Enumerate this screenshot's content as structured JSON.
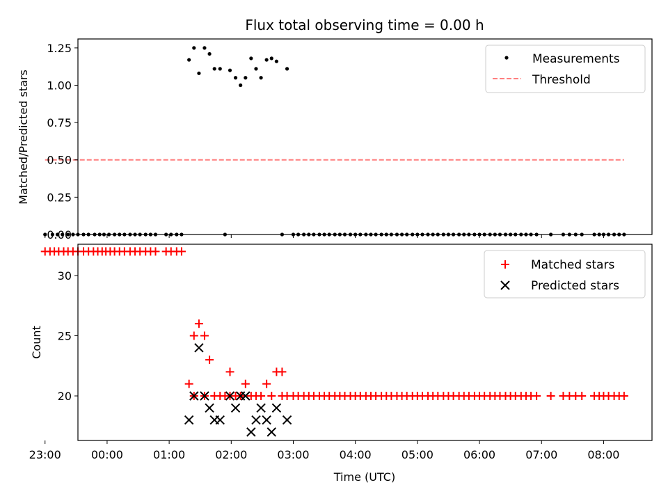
{
  "chart_data": {
    "type": "scatter",
    "title": "Flux total observing time = 0.00 h",
    "shared_xaxis": {
      "label": "Time (UTC)",
      "unit": "hours after 00:00 UTC",
      "lim": [
        -0.47,
        8.78
      ],
      "ticks": [
        -1,
        0,
        1,
        2,
        3,
        4,
        5,
        6,
        7,
        8
      ],
      "tick_labels": [
        "23:00",
        "00:00",
        "01:00",
        "02:00",
        "03:00",
        "04:00",
        "05:00",
        "06:00",
        "07:00",
        "08:00"
      ]
    },
    "panels": [
      {
        "id": "ratio",
        "ylabel": "Matched/Predicted stars",
        "ylim": [
          0,
          1.31
        ],
        "yticks": [
          0.0,
          0.25,
          0.5,
          0.75,
          1.0,
          1.25
        ],
        "ytick_labels": [
          "0.00",
          "0.25",
          "0.50",
          "0.75",
          "1.00",
          "1.25"
        ],
        "legend_position": "upper right",
        "legend": [
          "Measurements",
          "Threshold"
        ],
        "series": [
          {
            "name": "Measurements",
            "kind": "scatter",
            "marker": "dot",
            "color": "#000000",
            "x": [
              1.32,
              1.4,
              1.48,
              1.57,
              1.65,
              1.73,
              1.82,
              1.98,
              2.07,
              2.15,
              2.23,
              2.32,
              2.4,
              2.48,
              2.57,
              2.65,
              2.73,
              2.9
            ],
            "y": [
              1.17,
              1.25,
              1.08,
              1.25,
              1.21,
              1.11,
              1.11,
              1.1,
              1.05,
              1.0,
              1.05,
              1.18,
              1.11,
              1.05,
              1.17,
              1.18,
              1.16,
              1.11
            ]
          },
          {
            "name": "",
            "kind": "scatter",
            "marker": "dot",
            "color": "#000000",
            "x": [
              -1.0,
              -0.88,
              -0.8,
              -0.72,
              -0.63,
              -0.55,
              -0.47,
              -0.38,
              -0.3,
              -0.2,
              -0.12,
              -0.05,
              0.03,
              0.12,
              0.2,
              0.28,
              0.37,
              0.45,
              0.53,
              0.62,
              0.7,
              0.78,
              0.95,
              1.03,
              1.12,
              1.2,
              1.9,
              2.82,
              3.0,
              3.08,
              3.17,
              3.25,
              3.33,
              3.42,
              3.5,
              3.58,
              3.67,
              3.75,
              3.83,
              3.92,
              4.0,
              4.08,
              4.17,
              4.25,
              4.33,
              4.42,
              4.5,
              4.58,
              4.67,
              4.75,
              4.83,
              4.92,
              5.0,
              5.08,
              5.17,
              5.25,
              5.33,
              5.42,
              5.5,
              5.58,
              5.67,
              5.75,
              5.83,
              5.92,
              6.0,
              6.08,
              6.17,
              6.25,
              6.33,
              6.42,
              6.5,
              6.58,
              6.67,
              6.75,
              6.83,
              6.92,
              7.15,
              7.35,
              7.45,
              7.55,
              7.65,
              7.85,
              7.93,
              8.0,
              8.08,
              8.17,
              8.25,
              8.33
            ],
            "y_value": 0.0
          },
          {
            "name": "Threshold",
            "kind": "line",
            "style": "dashed",
            "color": "#ff7f7f",
            "x": [
              -1.0,
              8.33
            ],
            "y": [
              0.5,
              0.5
            ]
          }
        ]
      },
      {
        "id": "counts",
        "ylabel": "Count",
        "ylim": [
          16.3,
          32.6
        ],
        "yticks": [
          20,
          25,
          30
        ],
        "ytick_labels": [
          "20",
          "25",
          "30"
        ],
        "legend_position": "upper right",
        "legend": [
          "Matched stars",
          "Predicted stars"
        ],
        "series": [
          {
            "name": "Matched stars",
            "kind": "scatter",
            "marker": "plus",
            "color": "#ff0000",
            "groups": [
              {
                "y": 32,
                "x": [
                  -1.0,
                  -0.92,
                  -0.85,
                  -0.78,
                  -0.7,
                  -0.63,
                  -0.55,
                  -0.47,
                  -0.38,
                  -0.3,
                  -0.22,
                  -0.15,
                  -0.08,
                  -0.02,
                  0.05,
                  0.12,
                  0.2,
                  0.28,
                  0.37,
                  0.45,
                  0.53,
                  0.62,
                  0.7,
                  0.78,
                  0.95,
                  1.03,
                  1.12,
                  1.2
                ]
              },
              {
                "y": 20,
                "x": [
                  1.4,
                  1.57,
                  1.73,
                  1.82,
                  1.9,
                  1.98,
                  2.07,
                  2.15,
                  2.32,
                  2.4,
                  2.48,
                  2.65,
                  2.82,
                  2.9,
                  3.0,
                  3.08,
                  3.17,
                  3.25,
                  3.33,
                  3.42,
                  3.5,
                  3.58,
                  3.67,
                  3.75,
                  3.83,
                  3.92,
                  4.0,
                  4.08,
                  4.17,
                  4.25,
                  4.33,
                  4.42,
                  4.5,
                  4.58,
                  4.67,
                  4.75,
                  4.83,
                  4.92,
                  5.0,
                  5.08,
                  5.17,
                  5.25,
                  5.33,
                  5.42,
                  5.5,
                  5.58,
                  5.67,
                  5.75,
                  5.83,
                  5.92,
                  6.0,
                  6.08,
                  6.17,
                  6.25,
                  6.33,
                  6.42,
                  6.5,
                  6.58,
                  6.67,
                  6.75,
                  6.83,
                  6.92,
                  7.15,
                  7.35,
                  7.45,
                  7.55,
                  7.65,
                  7.85,
                  7.93,
                  8.0,
                  8.08,
                  8.17,
                  8.25,
                  8.33
                ]
              }
            ],
            "x": [
              1.32,
              1.4,
              1.48,
              1.57,
              1.65,
              1.98,
              2.23,
              2.57,
              2.73,
              2.82
            ],
            "y": [
              21,
              25,
              26,
              25,
              23,
              22,
              21,
              21,
              22,
              22
            ]
          },
          {
            "name": "Predicted stars",
            "kind": "scatter",
            "marker": "x",
            "color": "#000000",
            "x": [
              1.32,
              1.4,
              1.48,
              1.57,
              1.65,
              1.73,
              1.82,
              1.98,
              2.07,
              2.15,
              2.23,
              2.32,
              2.4,
              2.48,
              2.57,
              2.65,
              2.73,
              2.9
            ],
            "y": [
              18,
              20,
              24,
              20,
              19,
              18,
              18,
              20,
              19,
              20,
              20,
              17,
              18,
              19,
              18,
              17,
              19,
              18
            ]
          }
        ]
      }
    ]
  }
}
